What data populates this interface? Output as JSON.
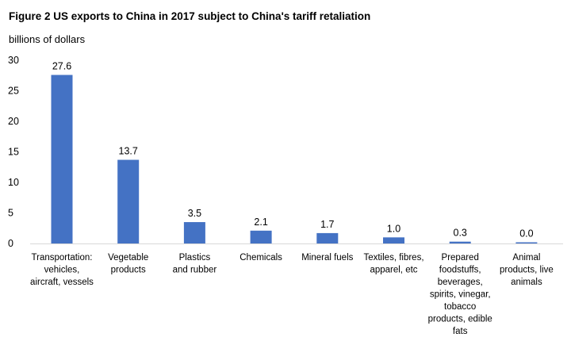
{
  "chart_data": {
    "type": "bar",
    "title": "Figure 2 US exports to China in 2017  subject to China's tariff retaliation",
    "ylabel": "billions of dollars",
    "xlabel": "",
    "ylim": [
      0,
      30
    ],
    "yticks": [
      0,
      5,
      10,
      15,
      20,
      25,
      30
    ],
    "grid": false,
    "bar_color": "#4472C4",
    "categories": [
      [
        "Transportation:",
        "vehicles,",
        "aircraft, vessels"
      ],
      [
        "Vegetable",
        "products"
      ],
      [
        "Plastics",
        "and rubber"
      ],
      [
        "Chemicals"
      ],
      [
        "Mineral fuels"
      ],
      [
        "Textiles, fibres,",
        "apparel, etc"
      ],
      [
        "Prepared",
        "foodstuffs,",
        "beverages,",
        "spirits, vinegar,",
        "tobacco",
        "products, edible",
        "fats"
      ],
      [
        "Animal",
        "products, live",
        "animals"
      ]
    ],
    "values": [
      27.6,
      13.7,
      3.5,
      2.1,
      1.7,
      1.0,
      0.3,
      0.0
    ],
    "data_labels": [
      "27.6",
      "13.7",
      "3.5",
      "2.1",
      "1.7",
      "1.0",
      "0.3",
      "0.0"
    ]
  }
}
